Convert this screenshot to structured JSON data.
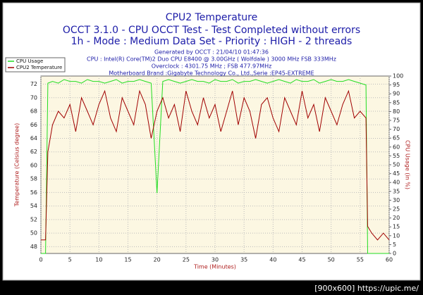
{
  "chart_data": {
    "type": "line",
    "title": "CPU2 Temperature",
    "subtitles": [
      "OCCT 3.1.0 - CPU OCCT Test - Test Completed without errors",
      "1h - Mode : Medium Data Set - Priority : HIGH - 2 threads"
    ],
    "info": [
      "Generated by OCCT : 21/04/10 01:47:36",
      "CPU : Intel(R) Core(TM)2 Duo CPU E8400 @ 3.00GHz ( Wolfdale ) 3000 MHz FSB 333MHz",
      "Overclock : 4301.75 MHz ; FSB 477.97MHz",
      "Motherboard Brand :Gigabyte Technology Co., Ltd.,Serie :EP45-EXTREME"
    ],
    "x_label": "Time (Minutes)",
    "y_label": "Temperature (Celsius degree)",
    "y2_label": "CPU Usage (in %)",
    "watermark": "[900x600] https://upic.me/",
    "legend": "top-left",
    "grid": true,
    "xlim": [
      0,
      60
    ],
    "xticks": [
      0,
      5,
      10,
      15,
      20,
      25,
      30,
      35,
      40,
      45,
      50,
      55,
      60
    ],
    "ylim": [
      47,
      73.2
    ],
    "yticks": [
      48,
      50,
      52,
      54,
      56,
      58,
      60,
      62,
      64,
      66,
      68,
      70,
      72
    ],
    "y2lim": [
      0,
      100
    ],
    "y2ticks": [
      0,
      5,
      10,
      15,
      20,
      25,
      30,
      35,
      40,
      45,
      50,
      55,
      60,
      65,
      70,
      75,
      80,
      85,
      90,
      95,
      100
    ],
    "x": [
      0,
      0.8,
      1.2,
      2,
      3,
      4,
      5,
      6,
      7,
      8,
      9,
      10,
      11,
      12,
      13,
      14,
      15,
      16,
      17,
      18,
      19,
      20,
      21,
      22,
      23,
      24,
      25,
      26,
      27,
      28,
      29,
      30,
      31,
      32,
      33,
      34,
      35,
      36,
      37,
      38,
      39,
      40,
      41,
      42,
      43,
      44,
      45,
      46,
      47,
      48,
      49,
      50,
      51,
      52,
      53,
      54,
      55,
      56,
      56.3,
      57,
      58,
      59,
      60
    ],
    "series": [
      {
        "name": "CPU Usage",
        "color": "#22dd22",
        "axis": "y2",
        "values": [
          0,
          0,
          96,
          97,
          96,
          98,
          97,
          97,
          96,
          98,
          97,
          97,
          96,
          97,
          98,
          96,
          97,
          97,
          98,
          97,
          96,
          34,
          97,
          98,
          97,
          96,
          97,
          98,
          97,
          97,
          96,
          98,
          97,
          97,
          98,
          96,
          97,
          97,
          98,
          97,
          96,
          97,
          98,
          97,
          96,
          98,
          97,
          97,
          98,
          96,
          97,
          98,
          97,
          97,
          98,
          97,
          96,
          95,
          0,
          0,
          0,
          0,
          0
        ]
      },
      {
        "name": "CPU2 Temperature",
        "color": "#a00000",
        "values": [
          49,
          49,
          62,
          66,
          68,
          67,
          69,
          65,
          70,
          68,
          66,
          69,
          71,
          67,
          65,
          70,
          68,
          66,
          71,
          69,
          64,
          68,
          70,
          67,
          69,
          65,
          71,
          68,
          66,
          70,
          67,
          69,
          65,
          68,
          71,
          66,
          70,
          68,
          64,
          69,
          70,
          67,
          65,
          70,
          68,
          66,
          71,
          67,
          69,
          65,
          70,
          68,
          66,
          69,
          71,
          67,
          68,
          67,
          51,
          50,
          49,
          50,
          49
        ]
      }
    ]
  }
}
